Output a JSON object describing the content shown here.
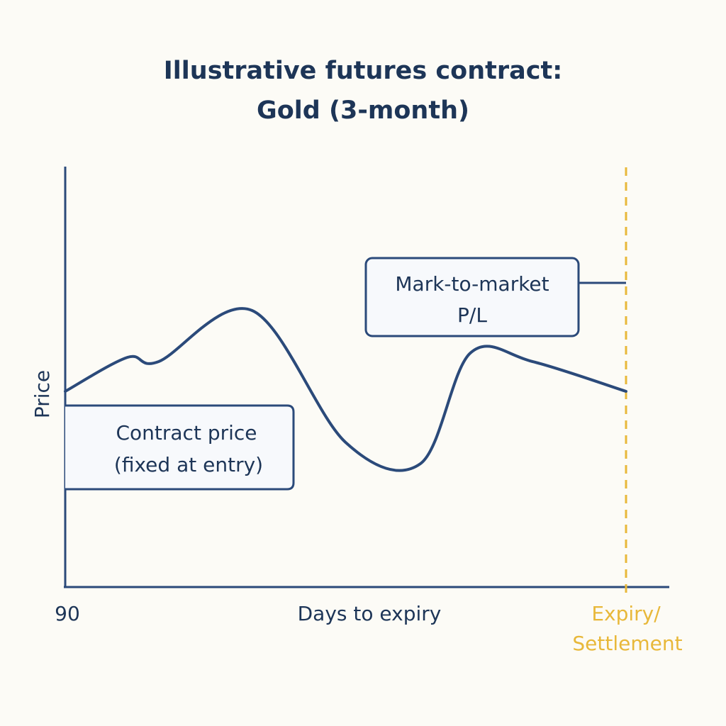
{
  "chart_data": {
    "type": "line",
    "title_line1": "Illustrative futures contract:",
    "title_line2": "Gold (3-month)",
    "xlabel": "Days to expiry",
    "ylabel": "Price",
    "x_start_label": "90",
    "x_end_label_line1": "Expiry/",
    "x_end_label_line2": "Settlement",
    "xlim": [
      90,
      0
    ],
    "ylim": [
      0,
      100
    ],
    "grid": false,
    "series": [
      {
        "x": [
          90,
          80,
          75,
          60,
          45,
          33,
          25,
          15,
          0
        ],
        "values": [
          46,
          54,
          53,
          65,
          34,
          29,
          55,
          53,
          46
        ]
      }
    ],
    "annotations": {
      "contract_price_line1": "Contract price",
      "contract_price_line2": "(fixed at entry)",
      "mtm_line1": "Mark-to-market",
      "mtm_line2": "P/L"
    },
    "colors": {
      "line": "#2b4a7a",
      "axis": "#2b4a7a",
      "text": "#1d3557",
      "expiry": "#e8b83a",
      "box_fill": "#f7f9fc"
    }
  }
}
